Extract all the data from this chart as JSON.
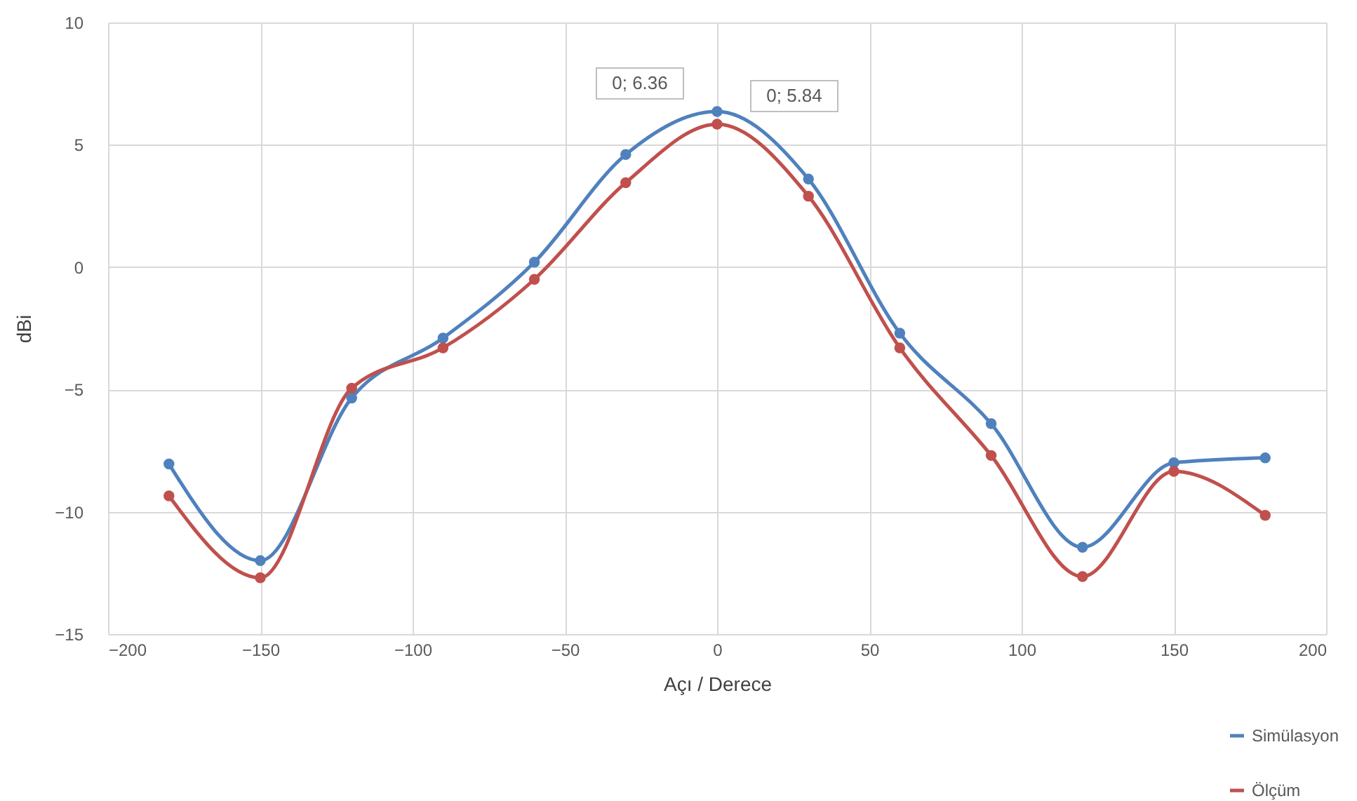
{
  "chart_data": {
    "type": "line",
    "xlabel": "Açı / Derece",
    "ylabel": "dBi",
    "x": [
      -180,
      -150,
      -120,
      -90,
      -60,
      -30,
      0,
      30,
      60,
      90,
      120,
      150,
      180
    ],
    "series": [
      {
        "name": "Simülasyon",
        "color": "#4f81bd",
        "values": [
          -8.05,
          -12.0,
          -5.35,
          -2.9,
          0.2,
          4.6,
          6.36,
          3.6,
          -2.7,
          -6.4,
          -11.45,
          -8.0,
          -7.8
        ]
      },
      {
        "name": "Ölçüm",
        "color": "#c0504d",
        "values": [
          -9.35,
          -12.7,
          -4.95,
          -3.3,
          -0.5,
          3.45,
          5.84,
          2.9,
          -3.3,
          -7.7,
          -12.65,
          -8.35,
          -10.15
        ]
      }
    ],
    "xlim": [
      -200,
      200
    ],
    "xticks": [
      -200,
      -150,
      -100,
      -50,
      0,
      50,
      100,
      150,
      200
    ],
    "ylim": [
      -15,
      10
    ],
    "yticks": [
      -15,
      -10,
      -5,
      0,
      5,
      10
    ],
    "annotations": [
      {
        "text": "0; 6.36",
        "x": 0,
        "y": 6.36
      },
      {
        "text": "0; 5.84",
        "x": 0,
        "y": 5.84
      }
    ],
    "grid": true,
    "legend": "bottom right",
    "marker": "circle",
    "line_style": "solid"
  }
}
